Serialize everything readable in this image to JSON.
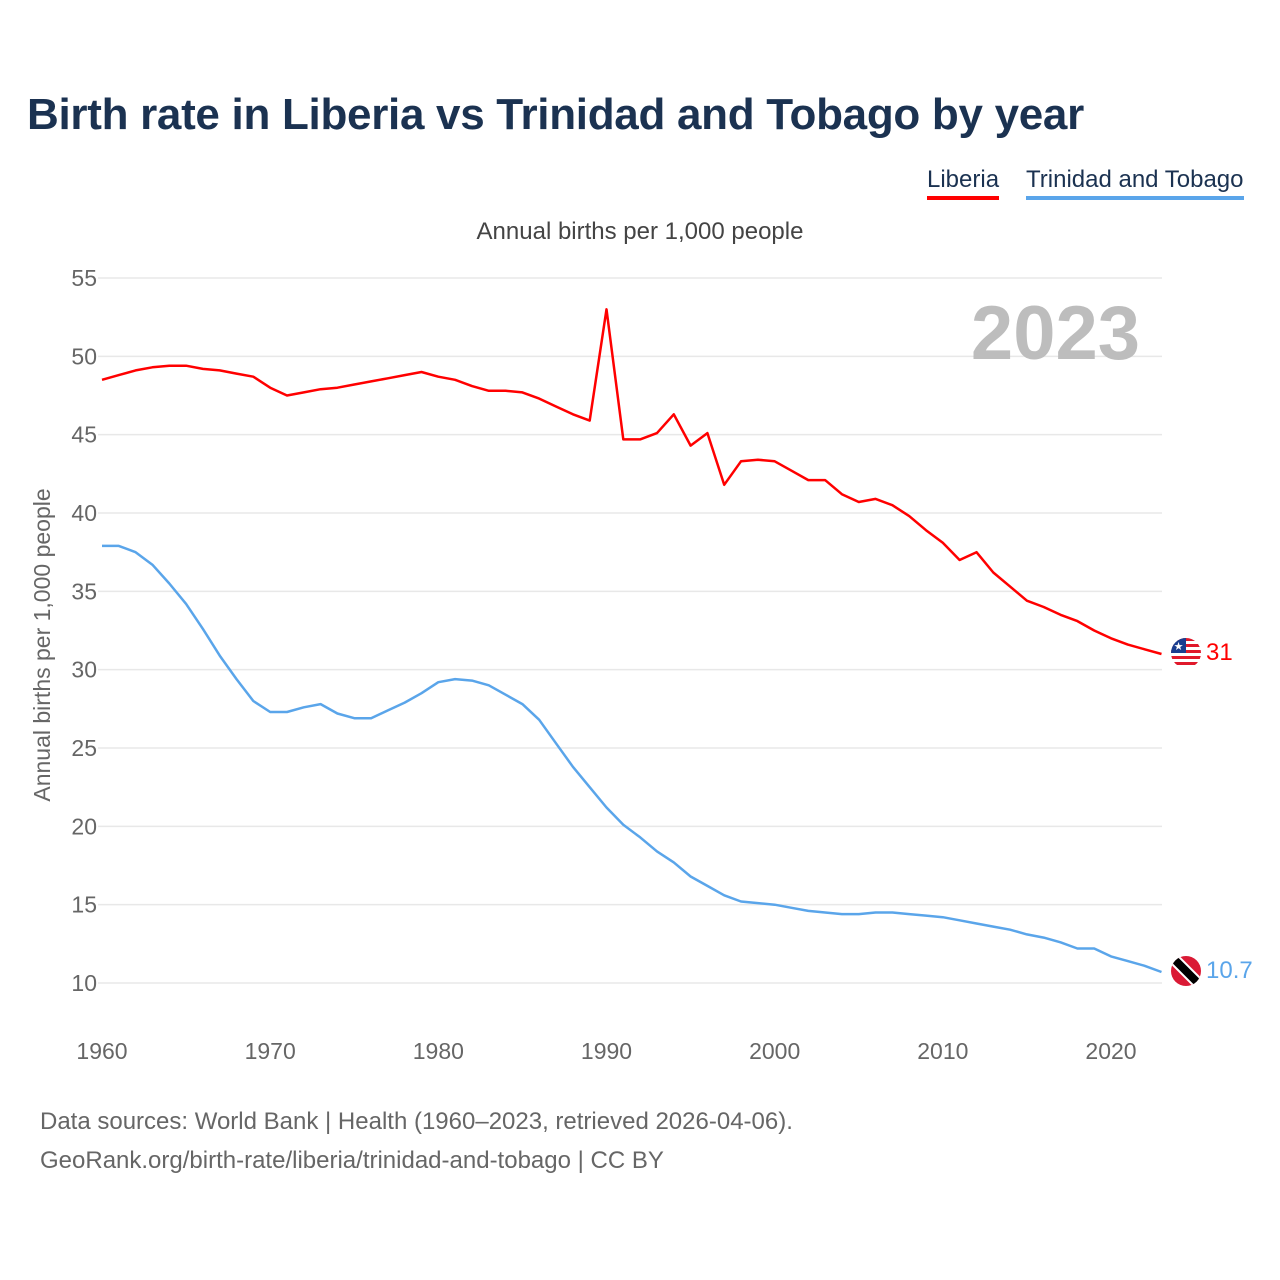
{
  "chart_data": {
    "type": "line",
    "title": "Birth rate in Liberia vs Trinidad and Tobago by year",
    "subtitle": "Annual births per 1,000 people",
    "ylabel": "Annual births per 1,000 people",
    "xlabel": "",
    "xlim": [
      1960,
      2023
    ],
    "ylim": [
      10,
      55
    ],
    "yticks": [
      10,
      15,
      20,
      25,
      30,
      35,
      40,
      45,
      50,
      55
    ],
    "xticks": [
      1960,
      1970,
      1980,
      1990,
      2000,
      2010,
      2020
    ],
    "grid": true,
    "legend_position": "top-right",
    "highlight_year": "2023",
    "x": [
      1960,
      1961,
      1962,
      1963,
      1964,
      1965,
      1966,
      1967,
      1968,
      1969,
      1970,
      1971,
      1972,
      1973,
      1974,
      1975,
      1976,
      1977,
      1978,
      1979,
      1980,
      1981,
      1982,
      1983,
      1984,
      1985,
      1986,
      1987,
      1988,
      1989,
      1990,
      1991,
      1992,
      1993,
      1994,
      1995,
      1996,
      1997,
      1998,
      1999,
      2000,
      2001,
      2002,
      2003,
      2004,
      2005,
      2006,
      2007,
      2008,
      2009,
      2010,
      2011,
      2012,
      2013,
      2014,
      2015,
      2016,
      2017,
      2018,
      2019,
      2020,
      2021,
      2022,
      2023
    ],
    "series": [
      {
        "name": "Liberia",
        "color": "#ff0000",
        "end_label": "31",
        "values": [
          48.5,
          48.8,
          49.1,
          49.3,
          49.4,
          49.4,
          49.2,
          49.1,
          48.9,
          48.7,
          48.0,
          47.5,
          47.7,
          47.9,
          48.0,
          48.2,
          48.4,
          48.6,
          48.8,
          49.0,
          48.7,
          48.5,
          48.1,
          47.8,
          47.8,
          47.7,
          47.3,
          46.8,
          46.3,
          45.9,
          53.0,
          44.7,
          44.7,
          45.1,
          46.3,
          44.3,
          45.1,
          41.8,
          43.3,
          43.4,
          43.3,
          42.7,
          42.1,
          42.1,
          41.2,
          40.7,
          40.9,
          40.5,
          39.8,
          38.9,
          38.1,
          37.0,
          37.5,
          36.2,
          35.3,
          34.4,
          34.0,
          33.5,
          33.1,
          32.5,
          32.0,
          31.6,
          31.3,
          31.0
        ]
      },
      {
        "name": "Trinidad and Tobago",
        "color": "#5aa5ea",
        "end_label": "10.7",
        "values": [
          37.9,
          37.9,
          37.5,
          36.7,
          35.5,
          34.2,
          32.6,
          30.9,
          29.4,
          28.0,
          27.3,
          27.3,
          27.6,
          27.8,
          27.2,
          26.9,
          26.9,
          27.4,
          27.9,
          28.5,
          29.2,
          29.4,
          29.3,
          29.0,
          28.4,
          27.8,
          26.8,
          25.3,
          23.8,
          22.5,
          21.2,
          20.1,
          19.3,
          18.4,
          17.7,
          16.8,
          16.2,
          15.6,
          15.2,
          15.1,
          15.0,
          14.8,
          14.6,
          14.5,
          14.4,
          14.4,
          14.5,
          14.5,
          14.4,
          14.3,
          14.2,
          14.0,
          13.8,
          13.6,
          13.4,
          13.1,
          12.9,
          12.6,
          12.2,
          12.2,
          11.7,
          11.4,
          11.1,
          10.7
        ]
      }
    ]
  },
  "footer": {
    "source": "Data sources: World Bank | Health (1960–2023, retrieved 2026-04-06).",
    "link": "GeoRank.org/birth-rate/liberia/trinidad-and-tobago | CC BY"
  },
  "icons": {
    "liberia": "liberia-flag-icon",
    "tt": "trinidad-and-tobago-flag-icon"
  }
}
